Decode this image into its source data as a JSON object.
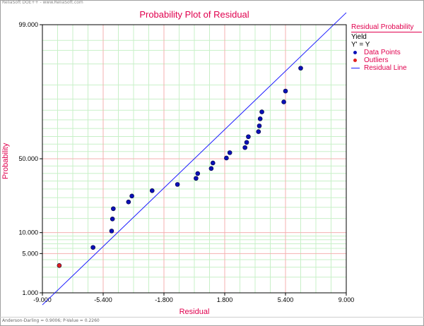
{
  "watermark": "ReliaSoft DOE++ - www.ReliaSoft.com",
  "footer": "Anderson-Darling = 0.9006; P-Value = 0.2260",
  "chart_data": {
    "type": "scatter",
    "title": "Probability Plot of Residual",
    "xlabel": "Residual",
    "ylabel": "Probability",
    "xlim": [
      -9.0,
      9.0
    ],
    "ylim": [
      1.0,
      99.0
    ],
    "y_scale": "normal-probability",
    "x_ticks": [
      "-9.000",
      "-5.400",
      "-1.800",
      "1.800",
      "5.400",
      "9.000"
    ],
    "x_tick_values": [
      -9.0,
      -5.4,
      -1.8,
      1.8,
      5.4,
      9.0
    ],
    "y_ticks": [
      "99.000",
      "50.000",
      "10.000",
      "5.000",
      "1.000"
    ],
    "y_tick_values": [
      99.0,
      50.0,
      10.0,
      5.0,
      1.0
    ],
    "grid": true,
    "legend_position": "right",
    "legend": {
      "title": "Residual Probability",
      "lines": [
        "Yield",
        "Y' = Y"
      ],
      "entries": [
        {
          "label": "Data Points",
          "symbol": "dot",
          "color": "#0a10b8"
        },
        {
          "label": "Outliers",
          "symbol": "dot",
          "color": "#e02020"
        },
        {
          "label": "Residual Line",
          "symbol": "line",
          "color": "#1a1aff"
        }
      ]
    },
    "series": [
      {
        "name": "Data Points",
        "color": "#0a10b8",
        "points": [
          {
            "x": -6.0,
            "y": 6.2
          },
          {
            "x": -4.9,
            "y": 10.5
          },
          {
            "x": -4.85,
            "y": 14.8
          },
          {
            "x": -4.8,
            "y": 19.3
          },
          {
            "x": -3.9,
            "y": 22.7
          },
          {
            "x": -3.7,
            "y": 25.9
          },
          {
            "x": -2.5,
            "y": 29.0
          },
          {
            "x": -1.0,
            "y": 32.8
          },
          {
            "x": 0.1,
            "y": 36.7
          },
          {
            "x": 0.2,
            "y": 39.9
          },
          {
            "x": 1.0,
            "y": 43.3
          },
          {
            "x": 1.1,
            "y": 47.1
          },
          {
            "x": 1.9,
            "y": 50.5
          },
          {
            "x": 2.1,
            "y": 54.2
          },
          {
            "x": 3.0,
            "y": 57.7
          },
          {
            "x": 3.1,
            "y": 61.2
          },
          {
            "x": 3.2,
            "y": 64.9
          },
          {
            "x": 3.8,
            "y": 68.1
          },
          {
            "x": 3.85,
            "y": 71.6
          },
          {
            "x": 3.9,
            "y": 75.6
          },
          {
            "x": 4.0,
            "y": 79.2
          },
          {
            "x": 5.3,
            "y": 83.8
          },
          {
            "x": 5.4,
            "y": 88.0
          },
          {
            "x": 6.3,
            "y": 94.2
          }
        ]
      },
      {
        "name": "Outliers",
        "color": "#e02020",
        "points": [
          {
            "x": -8.0,
            "y": 3.2
          }
        ]
      }
    ],
    "fit_line": {
      "name": "Residual Line",
      "color": "#1a1aff",
      "mean": 0.0,
      "sd": 3.55
    }
  }
}
